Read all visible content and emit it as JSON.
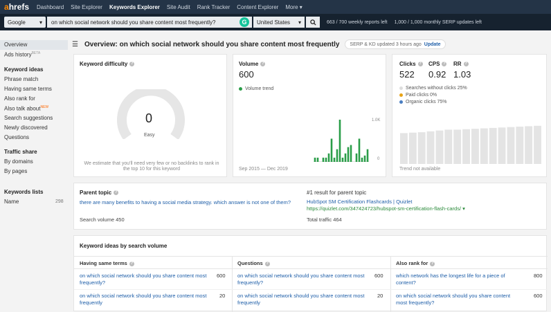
{
  "topnav": {
    "logo_a": "a",
    "logo_rest": "hrefs",
    "items": [
      "Dashboard",
      "Site Explorer",
      "Keywords Explorer",
      "Site Audit",
      "Rank Tracker",
      "Content Explorer",
      "More ▾"
    ]
  },
  "search": {
    "engine": "Google",
    "query": "on which social network should you share content most frequently?",
    "country": "United States",
    "reports_quota": "663 / 700 weekly reports left",
    "serp_quota": "1,000 / 1,000 monthly SERP updates left"
  },
  "sidebar": {
    "overview": "Overview",
    "ads_history": "Ads history",
    "beta": "BETA",
    "keyword_ideas_head": "Keyword ideas",
    "phrase_match": "Phrase match",
    "same_terms": "Having same terms",
    "also_rank": "Also rank for",
    "also_talk": "Also talk about",
    "new": "NEW",
    "search_suggestions": "Search suggestions",
    "newly_discovered": "Newly discovered",
    "questions": "Questions",
    "traffic_share_head": "Traffic share",
    "by_domains": "By domains",
    "by_pages": "By pages",
    "keywords_lists_head": "Keywords lists",
    "name": "Name",
    "name_count": "298"
  },
  "header": {
    "title": "Overview: on which social network should you share content most frequently",
    "updated": "SERP & KD updated 3 hours ago",
    "update_label": "Update"
  },
  "kd": {
    "title": "Keyword difficulty",
    "value": "0",
    "level": "Easy",
    "note": "We estimate that you'll need very few or no backlinks to rank in the top 10 for this keyword",
    "gauge_fraction": 0
  },
  "volume": {
    "title": "Volume",
    "value": "600",
    "trend_label": "Volume trend",
    "range": "Sep 2015 — Dec 2019",
    "y_top": "1.0K",
    "y_zero": "0",
    "bars": [
      0.1,
      0.1,
      0,
      0.1,
      0.1,
      0.2,
      0.55,
      0.1,
      0.3,
      1.0,
      0.1,
      0.2,
      0.35,
      0.4,
      0,
      0.2,
      0.55,
      0.1,
      0.15,
      0.3
    ]
  },
  "clicks": {
    "clicks_label": "Clicks",
    "clicks_value": "522",
    "cps_label": "CPS",
    "cps_value": "0.92",
    "rr_label": "RR",
    "rr_value": "1.03",
    "without_clicks": "Searches without clicks 25%",
    "paid_clicks": "Paid clicks 0%",
    "organic_clicks": "Organic clicks 75%",
    "trend_note": "Trend not available",
    "bars": [
      0.72,
      0.73,
      0.74,
      0.76,
      0.78,
      0.8,
      0.8,
      0.81,
      0.82,
      0.83,
      0.84,
      0.85,
      0.86,
      0.87,
      0.88,
      0.89
    ],
    "colors": {
      "without": "#dddddd",
      "paid": "#e8a317",
      "organic": "#4a7ec1"
    }
  },
  "parent": {
    "title": "Parent topic",
    "topic": "there are many benefits to having a social media strategy. which answer is not one of them?",
    "search_volume": "Search volume 450",
    "result_title": "#1 result for parent topic",
    "result_link": "HubSpot SM Certification Flashcards | Quizlet",
    "result_url": "https://quizlet.com/347424723/hubspot-sm-certification-flash-cards/ ▾",
    "total_traffic": "Total traffic 464"
  },
  "ideas": {
    "title": "Keyword ideas by search volume",
    "cols": [
      {
        "head": "Having same terms",
        "rows": [
          {
            "kw": "on which social network should you share content most frequently?",
            "vol": "600"
          },
          {
            "kw": "on which social network should you share content most frequently",
            "vol": "20"
          }
        ]
      },
      {
        "head": "Questions",
        "rows": [
          {
            "kw": "on which social network should you share content most frequently?",
            "vol": "600"
          },
          {
            "kw": "on which social network should you share content most frequently",
            "vol": "20"
          }
        ]
      },
      {
        "head": "Also rank for",
        "rows": [
          {
            "kw": "which network has the longest life for a piece of content?",
            "vol": "800"
          },
          {
            "kw": "on which social network should you share content most frequently?",
            "vol": "600"
          }
        ]
      }
    ]
  }
}
